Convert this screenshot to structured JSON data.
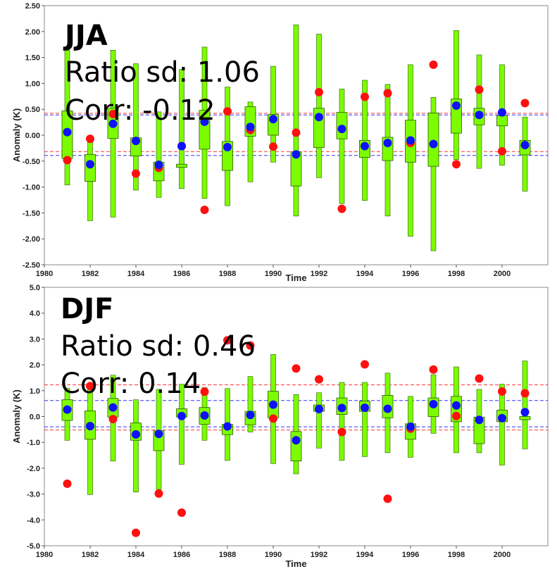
{
  "chart_data": [
    {
      "type": "box",
      "id": "jja",
      "season_label": "JJA",
      "ratio_text": "Ratio sd: 1.06",
      "corr_text": "Corr: -0.12",
      "xlabel": "Time",
      "ylabel": "Anomaly (K)",
      "xlim": [
        1980,
        2002
      ],
      "ylim": [
        -2.5,
        2.5
      ],
      "xticks": [
        1980,
        1982,
        1984,
        1986,
        1988,
        1990,
        1992,
        1994,
        1996,
        1998,
        2000
      ],
      "yticks": [
        -2.5,
        -2.0,
        -1.5,
        -1.0,
        -0.5,
        0.0,
        0.5,
        1.0,
        1.5,
        2.0,
        2.5
      ],
      "ytick_labels": [
        "-2.50",
        "-2.00",
        "-1.50",
        "-1.00",
        "-0.50",
        "0.00",
        "0.50",
        "1.00",
        "1.50",
        "2.00",
        "2.50"
      ],
      "colors": {
        "box": "#7CFC00",
        "outline": "#2d5a00",
        "model_mean": "#1010ff",
        "observed": "#ff1010",
        "obs_band": "#ff3333",
        "model_band": "#3333ff"
      },
      "obs_band": [
        -0.33,
        0.41
      ],
      "model_band": [
        -0.39,
        0.39
      ],
      "years": [
        1981,
        1982,
        1983,
        1984,
        1985,
        1986,
        1987,
        1988,
        1989,
        1990,
        1991,
        1992,
        1993,
        1994,
        1995,
        1996,
        1997,
        1998,
        1999,
        2000,
        2001
      ],
      "whisker_low": [
        -0.96,
        -1.65,
        -1.58,
        -1.06,
        -1.2,
        -1.03,
        -1.22,
        -1.36,
        -0.9,
        -0.52,
        -1.56,
        -0.82,
        -1.32,
        -1.26,
        -1.56,
        -1.95,
        -2.23,
        -0.47,
        -0.64,
        -0.58,
        -1.08
      ],
      "box_low": [
        -0.45,
        -0.89,
        -0.06,
        -0.4,
        -0.88,
        -0.62,
        -0.27,
        -0.68,
        -0.02,
        0.0,
        -0.98,
        -0.24,
        -0.07,
        -0.43,
        -0.49,
        -0.52,
        -0.6,
        0.04,
        0.2,
        0.18,
        -0.38
      ],
      "box_high": [
        0.47,
        -0.37,
        0.52,
        -0.05,
        -0.52,
        -0.56,
        0.48,
        -0.12,
        0.55,
        0.4,
        -0.32,
        0.52,
        0.44,
        -0.1,
        -0.04,
        0.29,
        0.43,
        0.7,
        0.52,
        0.38,
        -0.1
      ],
      "whisker_high": [
        1.64,
        -0.14,
        1.64,
        1.38,
        0.45,
        1.27,
        1.7,
        0.93,
        0.64,
        1.33,
        2.13,
        1.95,
        0.89,
        1.06,
        0.98,
        1.36,
        0.73,
        2.02,
        1.55,
        1.36,
        0.35
      ],
      "model_mean": [
        0.06,
        -0.56,
        0.22,
        -0.11,
        -0.57,
        -0.21,
        0.26,
        -0.23,
        0.16,
        0.31,
        -0.37,
        0.35,
        0.12,
        -0.21,
        -0.15,
        -0.1,
        -0.17,
        0.57,
        0.39,
        0.44,
        -0.19
      ],
      "observed": [
        -0.48,
        -0.07,
        0.41,
        -0.74,
        -0.63,
        -0.21,
        -1.44,
        0.46,
        0.1,
        -0.22,
        0.05,
        0.83,
        -1.42,
        0.74,
        0.81,
        -0.15,
        1.36,
        -0.56,
        0.88,
        -0.31,
        0.62
      ]
    },
    {
      "type": "box",
      "id": "djf",
      "season_label": "DJF",
      "ratio_text": "Ratio sd: 0.46",
      "corr_text": "Corr: 0.14",
      "xlabel": "Time",
      "ylabel": "Anomaly (K)",
      "xlim": [
        1980,
        2002
      ],
      "ylim": [
        -5.0,
        5.0
      ],
      "xticks": [
        1980,
        1982,
        1984,
        1986,
        1988,
        1990,
        1992,
        1994,
        1996,
        1998,
        2000
      ],
      "yticks": [
        -5,
        -4,
        -3,
        -2,
        -1,
        0,
        1,
        2,
        3,
        4,
        5
      ],
      "ytick_labels": [
        "-5.0",
        "-4.0",
        "-3.0",
        "-2.0",
        "-1.0",
        "0.0",
        "1.0",
        "2.0",
        "3.0",
        "4.0",
        "5.0"
      ],
      "colors": {
        "box": "#7CFC00",
        "outline": "#2d5a00",
        "model_mean": "#1010ff",
        "observed": "#ff1010",
        "obs_band": "#ff3333",
        "model_band": "#3333ff"
      },
      "obs_band": [
        -0.55,
        1.2
      ],
      "model_band": [
        -0.4,
        0.62
      ],
      "years": [
        1981,
        1982,
        1983,
        1984,
        1985,
        1986,
        1987,
        1988,
        1989,
        1990,
        1991,
        1992,
        1993,
        1994,
        1995,
        1996,
        1997,
        1998,
        1999,
        2000,
        2001
      ],
      "whisker_low": [
        -0.92,
        -3.02,
        -1.72,
        -2.92,
        -2.82,
        -1.85,
        -0.92,
        -1.7,
        -0.6,
        -1.82,
        -2.22,
        -1.22,
        -1.7,
        -1.55,
        -1.4,
        -1.58,
        -0.65,
        -1.4,
        -1.4,
        -1.88,
        -1.25
      ],
      "box_low": [
        -0.15,
        -0.88,
        -0.02,
        -0.92,
        -1.32,
        -0.02,
        -0.3,
        -0.7,
        -0.32,
        -0.05,
        -1.72,
        0.2,
        0.08,
        0.2,
        -0.05,
        -0.88,
        0.0,
        -0.2,
        -1.05,
        -0.2,
        -0.12
      ],
      "box_high": [
        0.65,
        0.22,
        0.7,
        -0.25,
        -0.55,
        0.3,
        0.35,
        -0.3,
        0.2,
        0.98,
        -0.58,
        0.45,
        0.72,
        0.6,
        0.82,
        -0.28,
        0.72,
        0.78,
        -0.02,
        0.25,
        0.0
      ],
      "whisker_high": [
        1.1,
        1.2,
        1.6,
        0.65,
        1.05,
        1.25,
        1.12,
        1.08,
        1.55,
        2.4,
        0.85,
        0.92,
        1.32,
        1.32,
        1.68,
        0.78,
        1.62,
        1.92,
        1.05,
        1.25,
        2.15
      ],
      "model_mean": [
        0.27,
        -0.37,
        0.35,
        -0.69,
        -0.67,
        0.02,
        0.04,
        -0.38,
        0.06,
        0.46,
        -0.92,
        0.29,
        0.33,
        0.34,
        0.3,
        -0.39,
        0.48,
        0.43,
        -0.13,
        -0.06,
        0.17
      ],
      "observed": [
        -2.6,
        1.18,
        -0.1,
        -4.5,
        -2.98,
        -3.72,
        0.96,
        2.95,
        2.75,
        -0.08,
        1.86,
        1.44,
        -0.6,
        2.02,
        -3.18,
        -0.47,
        1.82,
        0.02,
        1.47,
        0.97,
        0.9
      ]
    }
  ]
}
